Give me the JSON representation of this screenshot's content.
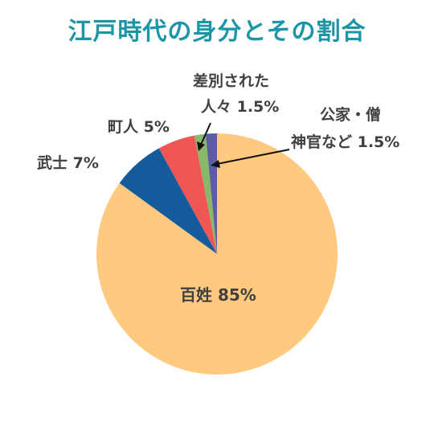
{
  "colors": {
    "title": "#1b96a6",
    "label": "#404040"
  },
  "chart_data": {
    "type": "pie",
    "title": "江戸時代の身分とその割合",
    "slices": [
      {
        "name": "百姓",
        "value": 85,
        "value_label": "85%",
        "color": "#ffca7f"
      },
      {
        "name": "武士",
        "value": 7,
        "value_label": "7%",
        "color": "#145b9c"
      },
      {
        "name": "町人",
        "value": 5,
        "value_label": "5%",
        "color": "#f15656"
      },
      {
        "name": "差別された人々",
        "value": 1.5,
        "value_label": "1.5%",
        "color": "#8ab86b"
      },
      {
        "name": "公家・僧神官など",
        "value": 1.5,
        "value_label": "1.5%",
        "color": "#5d5da1"
      }
    ],
    "labels": {
      "hyakusho": "百姓 85%",
      "bushi": "武士 7%",
      "chonin": "町人 5%",
      "sabetsu_line1": "差別された",
      "sabetsu_line2": "人々 1.5%",
      "kuge_line1": "公家・僧",
      "kuge_line2": "神官など 1.5%"
    }
  }
}
